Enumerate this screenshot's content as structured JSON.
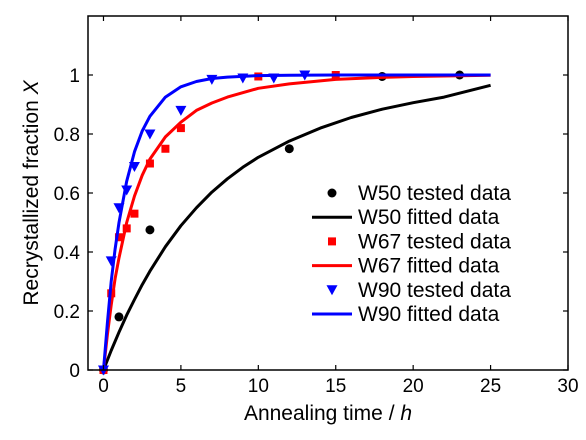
{
  "chart_data": {
    "type": "scatter",
    "title": "",
    "xlabel": "Annealing time / h",
    "xlabel_main": "Annealing time / ",
    "xlabel_var": "h",
    "ylabel": "Recrystallized fraction X",
    "ylabel_main": "Recrystallized fraction ",
    "ylabel_var": "X",
    "xlim": [
      -1,
      30
    ],
    "ylim": [
      0,
      1.2
    ],
    "xticks": [
      0,
      5,
      10,
      15,
      20,
      25,
      30
    ],
    "yticks": [
      0,
      0.2,
      0.4,
      0.6,
      0.8,
      1
    ],
    "xtick_labels": [
      "0",
      "5",
      "10",
      "15",
      "20",
      "25",
      "30"
    ],
    "ytick_labels": [
      "0",
      "0.2",
      "0.4",
      "0.6",
      "0.8",
      "1"
    ],
    "grid": false,
    "legend_position": "bottom-right",
    "series": [
      {
        "name": "W50 tested data",
        "kind": "scatter",
        "marker": "circle",
        "color": "#000000",
        "x": [
          0,
          1,
          3,
          12,
          18,
          23
        ],
        "y": [
          0,
          0.18,
          0.475,
          0.75,
          0.995,
          1.0
        ]
      },
      {
        "name": "W50 fitted data",
        "kind": "line",
        "color": "#000000",
        "x": [
          0,
          0.5,
          1,
          1.5,
          2,
          2.5,
          3,
          4,
          5,
          6,
          7,
          8,
          9,
          10,
          12,
          14,
          16,
          18,
          20,
          22,
          25
        ],
        "y": [
          0,
          0.066,
          0.128,
          0.186,
          0.239,
          0.289,
          0.335,
          0.418,
          0.489,
          0.55,
          0.603,
          0.648,
          0.687,
          0.721,
          0.776,
          0.82,
          0.856,
          0.884,
          0.906,
          0.925,
          0.965
        ]
      },
      {
        "name": "W67 tested data",
        "kind": "scatter",
        "marker": "square",
        "color": "#ff0000",
        "x": [
          0,
          0.5,
          1,
          1.5,
          2,
          3,
          4,
          5,
          10,
          15
        ],
        "y": [
          0,
          0.26,
          0.45,
          0.48,
          0.53,
          0.7,
          0.75,
          0.82,
          0.995,
          1.0
        ]
      },
      {
        "name": "W67 fitted data",
        "kind": "line",
        "color": "#ff0000",
        "x": [
          0,
          0.25,
          0.5,
          0.75,
          1,
          1.5,
          2,
          2.5,
          3,
          4,
          5,
          6,
          7,
          8,
          10,
          12,
          15,
          18,
          20,
          25
        ],
        "y": [
          0,
          0.12,
          0.22,
          0.31,
          0.38,
          0.5,
          0.59,
          0.66,
          0.715,
          0.79,
          0.84,
          0.88,
          0.905,
          0.925,
          0.955,
          0.97,
          0.985,
          0.992,
          0.995,
          0.999
        ]
      },
      {
        "name": "W90 tested data",
        "kind": "scatter",
        "marker": "triangle-down",
        "color": "#0000ff",
        "x": [
          0,
          0.5,
          1,
          1.5,
          2,
          3,
          5,
          7,
          9,
          11,
          13
        ],
        "y": [
          0,
          0.37,
          0.55,
          0.61,
          0.69,
          0.8,
          0.88,
          0.985,
          0.99,
          0.99,
          1.0
        ]
      },
      {
        "name": "W90 fitted data",
        "kind": "line",
        "color": "#0000ff",
        "x": [
          0,
          0.25,
          0.5,
          0.75,
          1,
          1.5,
          2,
          2.5,
          3,
          4,
          5,
          6,
          7,
          8,
          10,
          12,
          15,
          20,
          25
        ],
        "y": [
          0,
          0.16,
          0.3,
          0.41,
          0.5,
          0.64,
          0.74,
          0.81,
          0.86,
          0.925,
          0.96,
          0.978,
          0.988,
          0.993,
          0.998,
          0.999,
          1.0,
          1.0,
          1.0
        ]
      }
    ]
  }
}
